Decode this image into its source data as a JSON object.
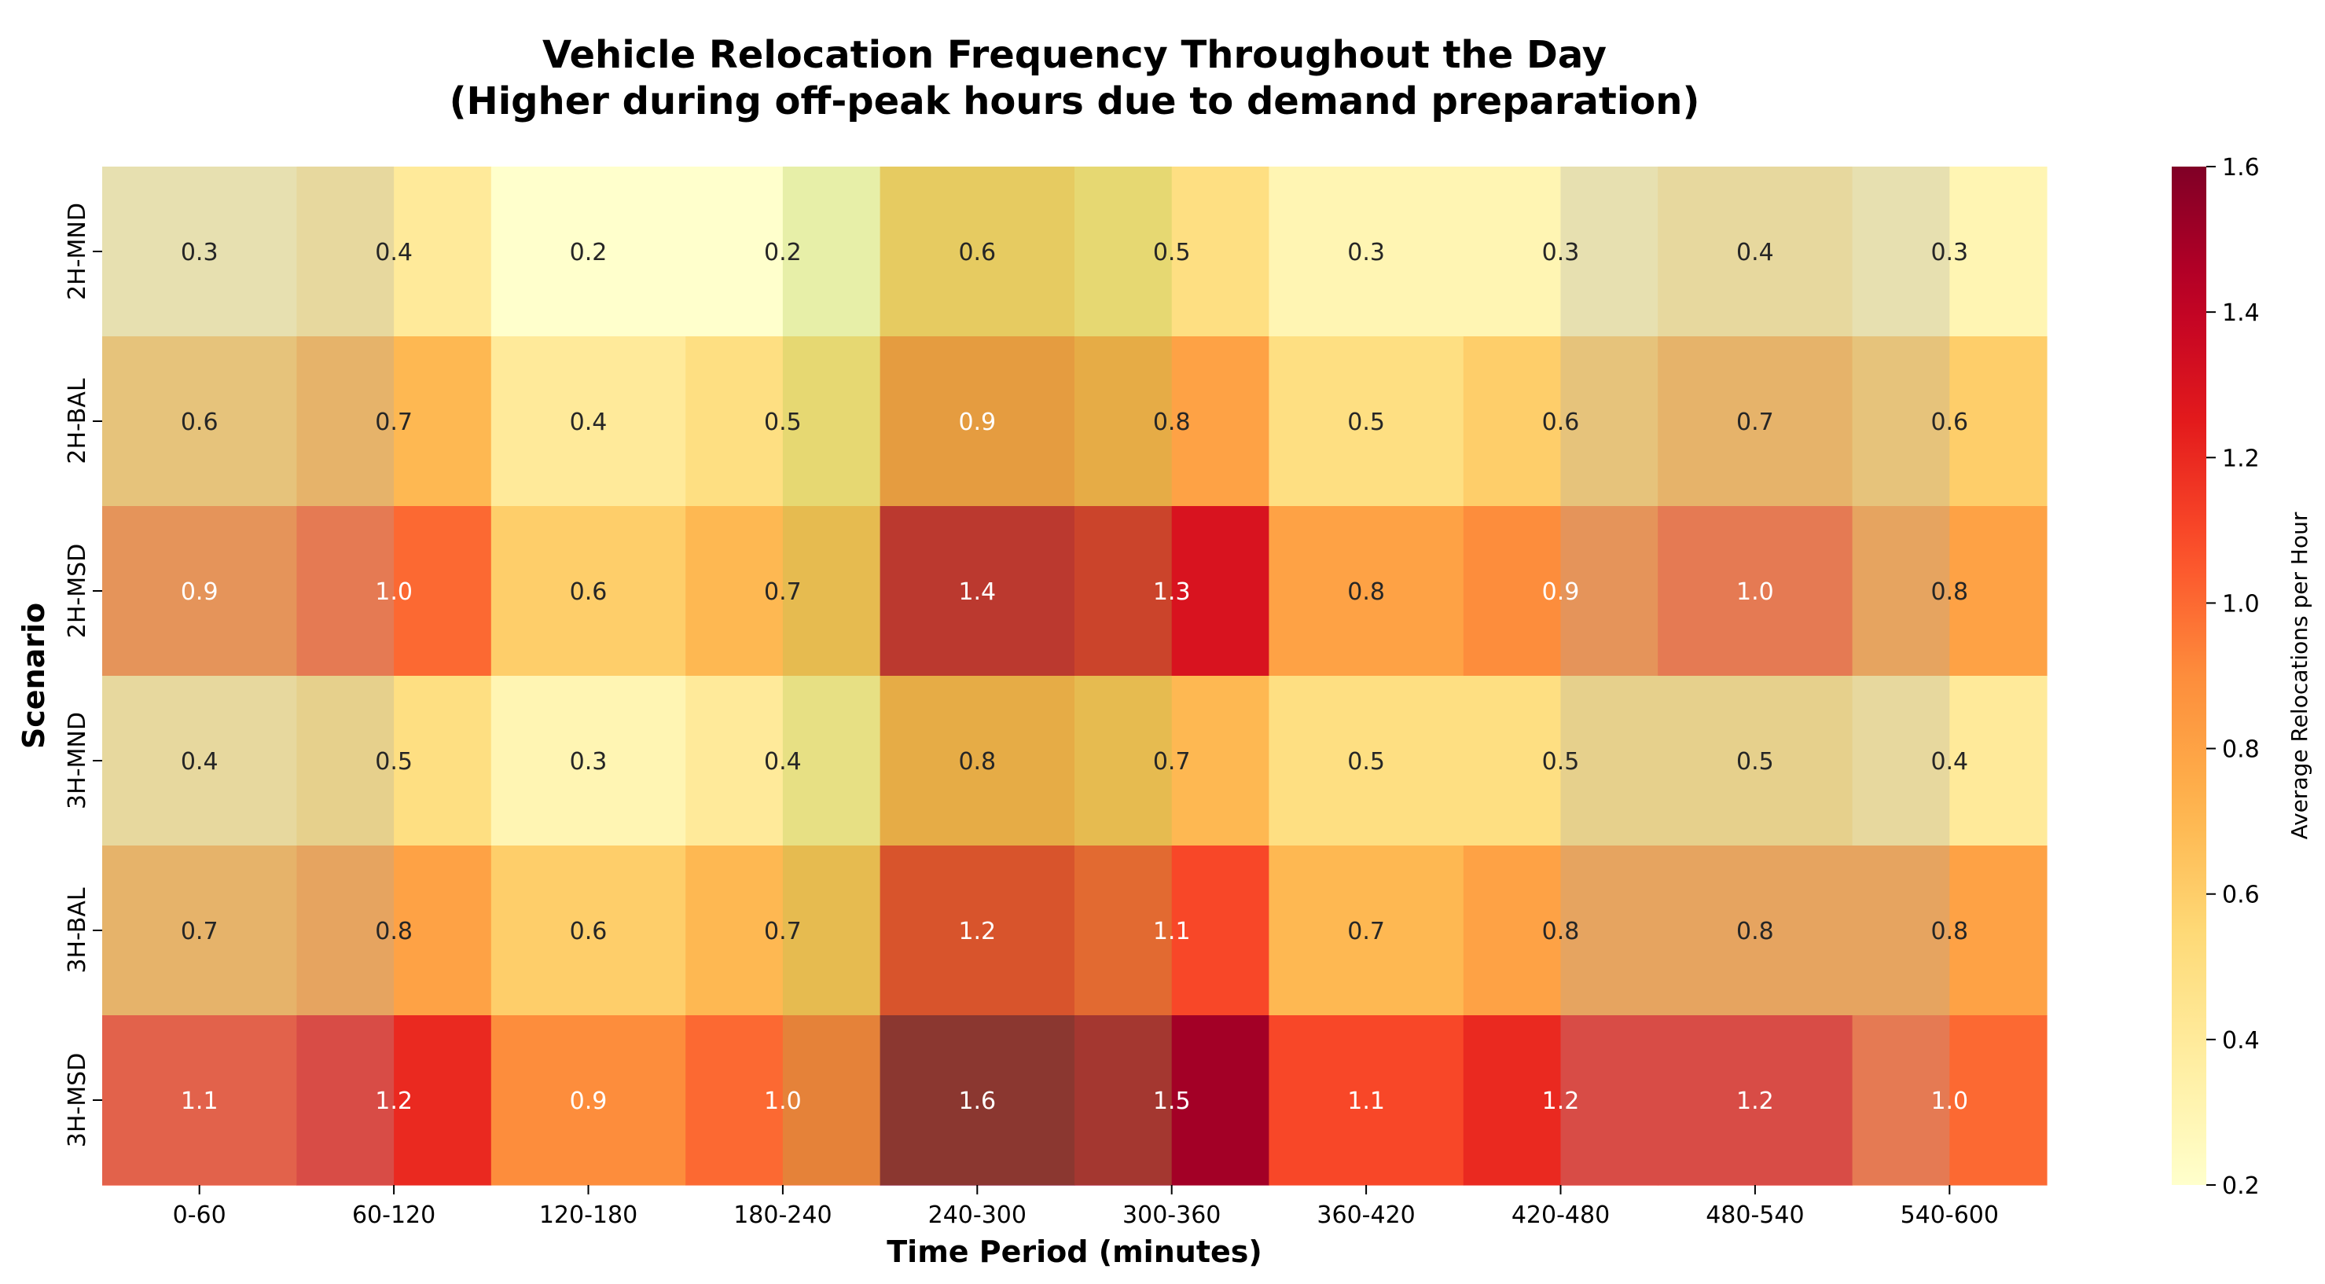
{
  "chart_data": {
    "type": "heatmap",
    "title_line1": "Vehicle Relocation Frequency Throughout the Day",
    "title_line2": "(Higher during off-peak hours due to demand preparation)",
    "xlabel": "Time Period (minutes)",
    "ylabel": "Scenario",
    "x_categories": [
      "0-60",
      "60-120",
      "120-180",
      "180-240",
      "240-300",
      "300-360",
      "360-420",
      "420-480",
      "480-540",
      "540-600"
    ],
    "y_categories": [
      "2H-MND",
      "2H-BAL",
      "2H-MSD",
      "3H-MND",
      "3H-BAL",
      "3H-MSD"
    ],
    "values": [
      [
        0.3,
        0.4,
        0.2,
        0.2,
        0.6,
        0.5,
        0.3,
        0.3,
        0.4,
        0.3
      ],
      [
        0.6,
        0.7,
        0.4,
        0.5,
        0.9,
        0.8,
        0.5,
        0.6,
        0.7,
        0.6
      ],
      [
        0.9,
        1.0,
        0.6,
        0.7,
        1.4,
        1.3,
        0.8,
        0.9,
        1.0,
        0.8
      ],
      [
        0.4,
        0.5,
        0.3,
        0.4,
        0.8,
        0.7,
        0.5,
        0.5,
        0.5,
        0.4
      ],
      [
        0.7,
        0.8,
        0.6,
        0.7,
        1.2,
        1.1,
        0.7,
        0.8,
        0.8,
        0.8
      ],
      [
        1.1,
        1.2,
        0.9,
        1.0,
        1.6,
        1.5,
        1.1,
        1.2,
        1.2,
        1.0
      ]
    ],
    "colormap": "YlOrRd",
    "colorbar": {
      "label": "Average Relocations per Hour",
      "vmin": 0.2,
      "vmax": 1.6,
      "ticks": [
        "0.2",
        "0.4",
        "0.6",
        "0.8",
        "1.0",
        "1.2",
        "1.4",
        "1.6"
      ]
    },
    "text_threshold": 0.85,
    "overlay_bands": [
      {
        "x_start": 0,
        "x_end": 1.5,
        "color": "#a8a8a8",
        "opacity": 0.28
      },
      {
        "x_start": 3.5,
        "x_end": 5.5,
        "color": "#a8c44a",
        "opacity": 0.28
      },
      {
        "x_start": 7.5,
        "x_end": 9.5,
        "color": "#a8a8a8",
        "opacity": 0.28
      }
    ]
  }
}
